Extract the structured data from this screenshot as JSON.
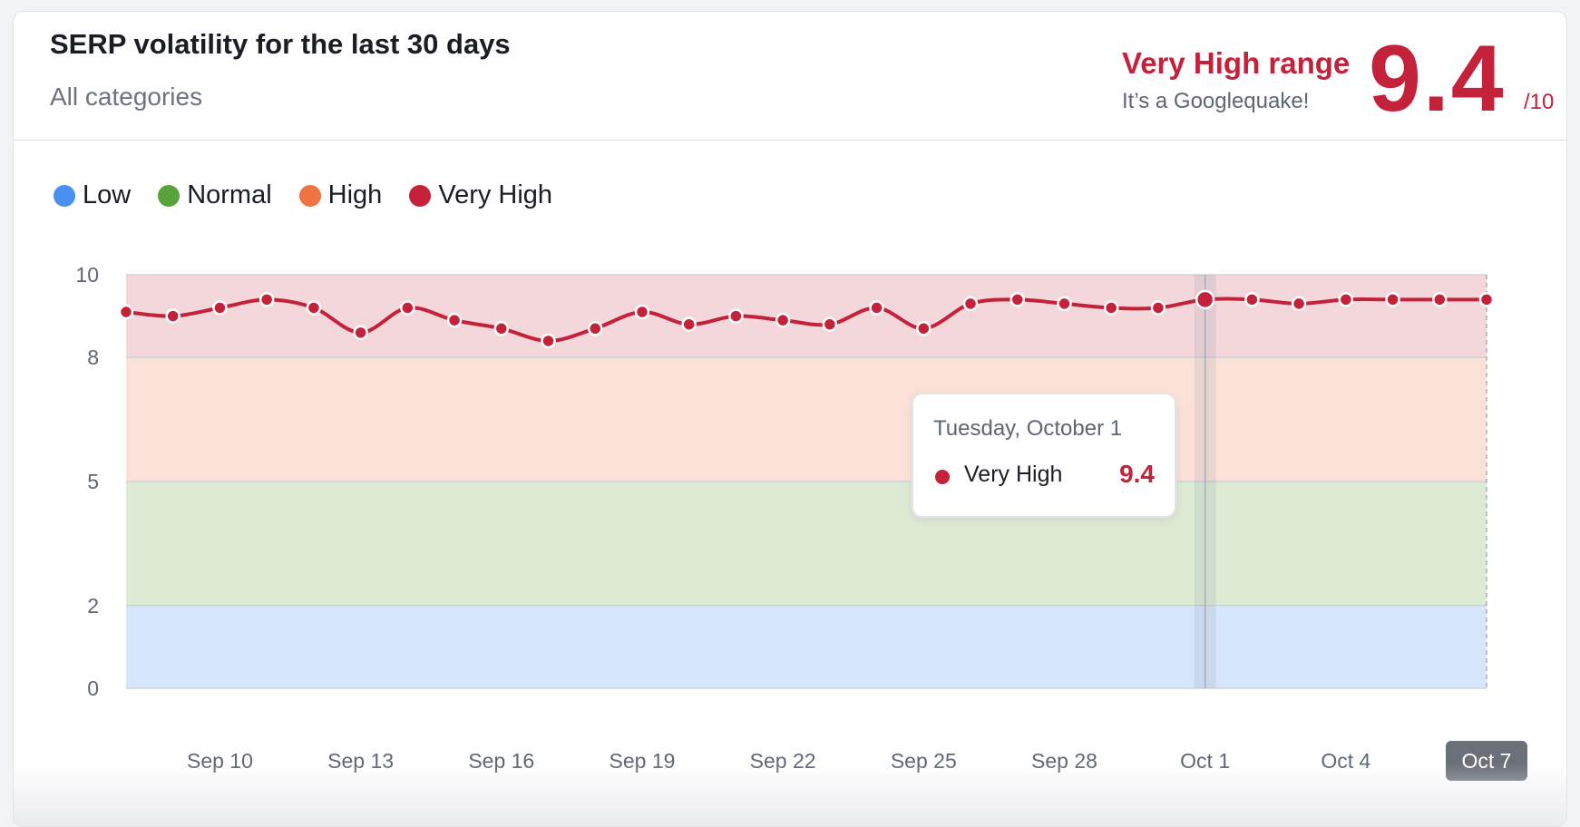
{
  "header": {
    "title": "SERP volatility for the last 30 days",
    "subtitle": "All categories",
    "range_label": "Very High range",
    "range_desc": "It’s a Googlequake!",
    "score": "9.4",
    "score_max": "/10"
  },
  "legend": [
    {
      "label": "Low",
      "color": "#4a90f0"
    },
    {
      "label": "Normal",
      "color": "#58a23c"
    },
    {
      "label": "High",
      "color": "#ef7440"
    },
    {
      "label": "Very High",
      "color": "#c4213a"
    }
  ],
  "tooltip": {
    "date": "Tuesday, October 1",
    "series": "Very High",
    "value": "9.4"
  },
  "chart_data": {
    "type": "area",
    "series": [
      {
        "name": "Very High",
        "values": [
          9.1,
          9.0,
          9.2,
          9.4,
          9.2,
          8.6,
          9.2,
          8.9,
          8.7,
          8.4,
          8.7,
          9.1,
          8.8,
          9.0,
          8.9,
          8.8,
          9.2,
          8.7,
          9.3,
          9.4,
          9.3,
          9.2,
          9.2,
          9.4,
          9.4,
          9.3,
          9.4,
          9.4,
          9.4,
          9.4
        ]
      }
    ],
    "x_dates": [
      "Sep 8",
      "Sep 9",
      "Sep 10",
      "Sep 11",
      "Sep 12",
      "Sep 13",
      "Sep 14",
      "Sep 15",
      "Sep 16",
      "Sep 17",
      "Sep 18",
      "Sep 19",
      "Sep 20",
      "Sep 21",
      "Sep 22",
      "Sep 23",
      "Sep 24",
      "Sep 25",
      "Sep 26",
      "Sep 27",
      "Sep 28",
      "Sep 29",
      "Sep 30",
      "Oct 1",
      "Oct 2",
      "Oct 3",
      "Oct 4",
      "Oct 5",
      "Oct 6",
      "Oct 7"
    ],
    "x_tick_labels": [
      "Sep 10",
      "Sep 13",
      "Sep 16",
      "Sep 19",
      "Sep 22",
      "Sep 25",
      "Sep 28",
      "Oct 1",
      "Oct 4",
      "Oct 7"
    ],
    "highlighted_x_label": "Oct 7",
    "y_ticks": [
      0,
      2,
      5,
      8,
      10
    ],
    "ylim": [
      0,
      10
    ],
    "bands": [
      {
        "name": "Low",
        "from": 0,
        "to": 2,
        "color": "#d6e6fb"
      },
      {
        "name": "Normal",
        "from": 2,
        "to": 5,
        "color": "#ddebd5"
      },
      {
        "name": "High",
        "from": 5,
        "to": 8,
        "color": "#fbe1d8"
      },
      {
        "name": "Very High",
        "from": 8,
        "to": 10,
        "color": "#f3d7db"
      }
    ],
    "line_color": "#c4213a",
    "hovered_date": "Oct 1",
    "grid": true,
    "legend_position": "top-left"
  }
}
